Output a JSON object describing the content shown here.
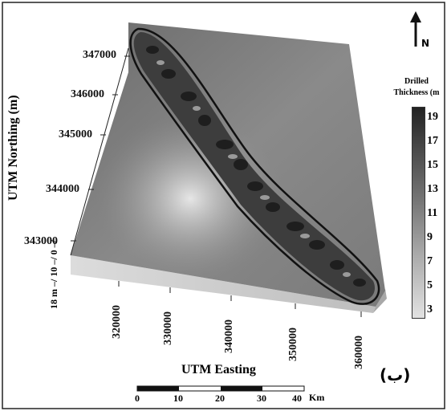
{
  "map": {
    "y_axis_title": "UTM Northing (m)",
    "x_axis_title": "UTM Easting",
    "z_axis_label": "18 m –/ 10 –/ 0 –/",
    "northing_ticks": [
      "347000",
      "346000",
      "345000",
      "344000",
      "343000"
    ],
    "easting_ticks": [
      "320000",
      "330000",
      "340000",
      "350000",
      "360000"
    ],
    "panel_label": "(ب)",
    "north_label": "N"
  },
  "legend": {
    "title_line1": "Drilled",
    "title_line2": "Thickness (m",
    "values": [
      "19",
      "17",
      "15",
      "13",
      "11",
      "9",
      "7",
      "5",
      "3"
    ]
  },
  "scale_bar": {
    "ticks": [
      "0",
      "10",
      "20",
      "30",
      "40"
    ],
    "unit": "Km"
  }
}
